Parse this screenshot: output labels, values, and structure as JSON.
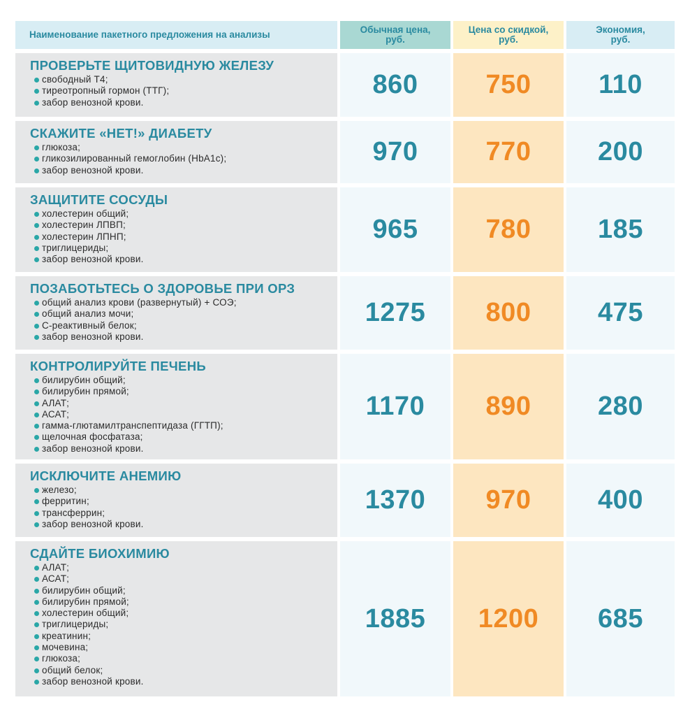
{
  "header": {
    "name": "Наименование пакетного предложения на анализы",
    "price": "Обычная цена,\nруб.",
    "discount": "Цена со скидкой,\nруб.",
    "savings": "Экономия,\nруб."
  },
  "packages": [
    {
      "title": "ПРОВЕРЬТЕ ЩИТОВИДНУЮ ЖЕЛЕЗУ",
      "items": [
        "свободный Т4;",
        "тиреотропный гормон (ТТГ);",
        "забор венозной крови."
      ],
      "price": "860",
      "discount": "750",
      "savings": "110"
    },
    {
      "title": "СКАЖИТЕ «НЕТ!» ДИАБЕТУ",
      "items": [
        "глюкоза;",
        "гликозилированный гемоглобин (HbA1c);",
        "забор венозной крови."
      ],
      "price": "970",
      "discount": "770",
      "savings": "200"
    },
    {
      "title": "ЗАЩИТИТЕ СОСУДЫ",
      "items": [
        "холестерин общий;",
        "холестерин ЛПВП;",
        "холестерин ЛПНП;",
        "триглицериды;",
        "забор венозной крови."
      ],
      "price": "965",
      "discount": "780",
      "savings": "185"
    },
    {
      "title": "ПОЗАБОТЬТЕСЬ О ЗДОРОВЬЕ ПРИ ОРЗ",
      "items": [
        "общий анализ крови (развернутый) + СОЭ;",
        "общий анализ мочи;",
        "С-реактивный белок;",
        "забор венозной крови."
      ],
      "price": "1275",
      "discount": "800",
      "savings": "475"
    },
    {
      "title": "КОНТРОЛИРУЙТЕ ПЕЧЕНЬ",
      "items": [
        "билирубин общий;",
        "билирубин прямой;",
        "АЛАТ;",
        "АСАТ;",
        "гамма-глютамилтранспептидаза (ГГТП);",
        "щелочная фосфатаза;",
        "забор венозной крови."
      ],
      "price": "1170",
      "discount": "890",
      "savings": "280"
    },
    {
      "title": "ИСКЛЮЧИТЕ АНЕМИЮ",
      "items": [
        "железо;",
        "ферритин;",
        "трансферрин;",
        "забор венозной крови."
      ],
      "price": "1370",
      "discount": "970",
      "savings": "400"
    },
    {
      "title": "СДАЙТЕ БИОХИМИЮ",
      "items": [
        "АЛАТ;",
        "АСАТ;",
        "билирубин общий;",
        "билирубин прямой;",
        "холестерин общий;",
        "триглицериды;",
        "креатинин;",
        "мочевина;",
        "глюкоза;",
        "общий белок;",
        "забор венозной крови."
      ],
      "price": "1885",
      "discount": "1200",
      "savings": "685"
    }
  ]
}
